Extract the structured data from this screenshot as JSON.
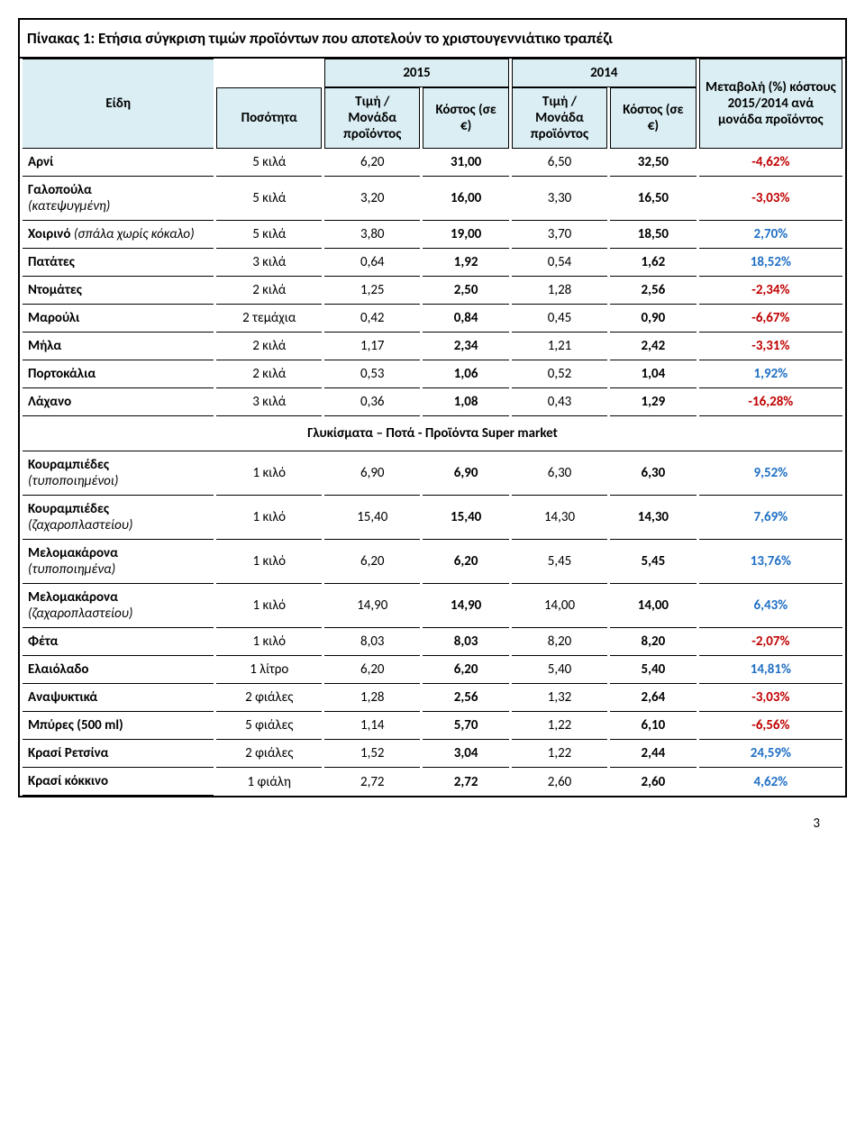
{
  "title": "Πίνακας 1: Ετήσια σύγκριση τιμών προϊόντων που αποτελούν το χριστουγεννιάτικο τραπέζι",
  "headers": {
    "items": "Είδη",
    "qty": "Ποσότητα",
    "y2015": "2015",
    "y2014": "2014",
    "price": "Τιμή / Μονάδα προϊόντος",
    "cost": "Κόστος (σε €)",
    "change": "Μεταβολή (%) κόστους 2015/2014 ανά μονάδα προϊόντος"
  },
  "colors": {
    "pos": "#1f6fc4",
    "neg": "#c00000",
    "header_bg": "#daeef3"
  },
  "section2_title": "Γλυκίσματα – Ποτά - Προϊόντα Super market",
  "rows1": [
    {
      "label": "Αρνί",
      "sub": "",
      "qty": "5  κιλά",
      "p15": "6,20",
      "c15": "31,00",
      "p14": "6,50",
      "c14": "32,50",
      "chg": "-4,62%",
      "sign": "neg"
    },
    {
      "label": "Γαλοπούλα",
      "sub": "(κατεψυγμένη)",
      "qty": "5  κιλά",
      "p15": "3,20",
      "c15": "16,00",
      "p14": "3,30",
      "c14": "16,50",
      "chg": "-3,03%",
      "sign": "neg"
    },
    {
      "label": "Χοιρινό ",
      "sub": "(σπάλα χωρίς κόκαλο)",
      "qty": "5  κιλά",
      "p15": "3,80",
      "c15": "19,00",
      "p14": "3,70",
      "c14": "18,50",
      "chg": "2,70%",
      "sign": "pos"
    },
    {
      "label": "Πατάτες",
      "sub": "",
      "qty": "3  κιλά",
      "p15": "0,64",
      "c15": "1,92",
      "p14": "0,54",
      "c14": "1,62",
      "chg": "18,52%",
      "sign": "pos"
    },
    {
      "label": "Ντομάτες",
      "sub": "",
      "qty": "2  κιλά",
      "p15": "1,25",
      "c15": "2,50",
      "p14": "1,28",
      "c14": "2,56",
      "chg": "-2,34%",
      "sign": "neg"
    },
    {
      "label": "Μαρούλι",
      "sub": "",
      "qty": "2  τεμάχια",
      "p15": "0,42",
      "c15": "0,84",
      "p14": "0,45",
      "c14": "0,90",
      "chg": "-6,67%",
      "sign": "neg"
    },
    {
      "label": "Μήλα",
      "sub": "",
      "qty": "2  κιλά",
      "p15": "1,17",
      "c15": "2,34",
      "p14": "1,21",
      "c14": "2,42",
      "chg": "-3,31%",
      "sign": "neg"
    },
    {
      "label": "Πορτοκάλια",
      "sub": "",
      "qty": "2  κιλά",
      "p15": "0,53",
      "c15": "1,06",
      "p14": "0,52",
      "c14": "1,04",
      "chg": "1,92%",
      "sign": "pos"
    },
    {
      "label": "Λάχανο",
      "sub": "",
      "qty": "3  κιλά",
      "p15": "0,36",
      "c15": "1,08",
      "p14": "0,43",
      "c14": "1,29",
      "chg": "-16,28%",
      "sign": "neg"
    }
  ],
  "rows2": [
    {
      "label": "Κουραμπιέδες",
      "sub": "(τυποποιημένοι)",
      "qty": "1 κιλό",
      "p15": "6,90",
      "c15": "6,90",
      "p14": "6,30",
      "c14": "6,30",
      "chg": "9,52%",
      "sign": "pos"
    },
    {
      "label": "Κουραμπιέδες",
      "sub": "(ζαχαροπλαστείου)",
      "qty": "1 κιλό",
      "p15": "15,40",
      "c15": "15,40",
      "p14": "14,30",
      "c14": "14,30",
      "chg": "7,69%",
      "sign": "pos"
    },
    {
      "label": "Μελομακάρονα",
      "sub": "(τυποποιημένα)",
      "qty": "1 κιλό",
      "p15": "6,20",
      "c15": "6,20",
      "p14": "5,45",
      "c14": "5,45",
      "chg": "13,76%",
      "sign": "pos"
    },
    {
      "label": "Μελομακάρονα",
      "sub": "(ζαχαροπλαστείου)",
      "qty": "1 κιλό",
      "p15": "14,90",
      "c15": "14,90",
      "p14": "14,00",
      "c14": "14,00",
      "chg": "6,43%",
      "sign": "pos"
    },
    {
      "label": "Φέτα",
      "sub": "",
      "qty": "1  κιλό",
      "p15": "8,03",
      "c15": "8,03",
      "p14": "8,20",
      "c14": "8,20",
      "chg": "-2,07%",
      "sign": "neg"
    },
    {
      "label": "Ελαιόλαδο",
      "sub": "",
      "qty": "1  λίτρο",
      "p15": "6,20",
      "c15": "6,20",
      "p14": "5,40",
      "c14": "5,40",
      "chg": "14,81%",
      "sign": "pos"
    },
    {
      "label": "Αναψυκτικά",
      "sub": "",
      "qty": "2 φιάλες",
      "p15": "1,28",
      "c15": "2,56",
      "p14": "1,32",
      "c14": "2,64",
      "chg": "-3,03%",
      "sign": "neg"
    },
    {
      "label": "Μπύρες (500 ml)",
      "sub": "",
      "qty": "5 φιάλες",
      "p15": "1,14",
      "c15": "5,70",
      "p14": "1,22",
      "c14": "6,10",
      "chg": "-6,56%",
      "sign": "neg"
    },
    {
      "label": "Κρασί Ρετσίνα",
      "sub": "",
      "qty": "2 φιάλες",
      "p15": "1,52",
      "c15": "3,04",
      "p14": "1,22",
      "c14": "2,44",
      "chg": "24,59%",
      "sign": "pos"
    },
    {
      "label": "Κρασί κόκκινο",
      "sub": "",
      "qty": "1  φιάλη",
      "p15": "2,72",
      "c15": "2,72",
      "p14": "2,60",
      "c14": "2,60",
      "chg": "4,62%",
      "sign": "pos"
    }
  ],
  "page_number": "3"
}
